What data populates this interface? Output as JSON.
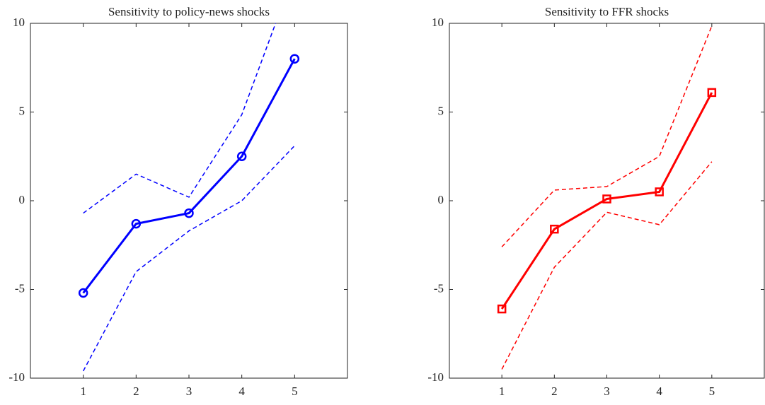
{
  "chart_data": [
    {
      "type": "line",
      "title": "Sensitivity to policy-news shocks",
      "x": [
        1,
        2,
        3,
        4,
        5
      ],
      "xlim": [
        0,
        6
      ],
      "xticks": [
        1,
        2,
        3,
        4,
        5
      ],
      "ylim": [
        -10,
        10
      ],
      "yticks": [
        -10,
        -5,
        0,
        5,
        10
      ],
      "series": [
        {
          "color": "#0000ff",
          "marker": "circle",
          "dash": false,
          "values": [
            -5.2,
            -1.3,
            -0.7,
            2.5,
            8.0
          ]
        },
        {
          "color": "#0000ff",
          "dash": true,
          "values": [
            -0.7,
            1.5,
            0.2,
            4.85,
            12.9
          ]
        },
        {
          "color": "#0000ff",
          "dash": true,
          "values": [
            -9.6,
            -4.0,
            -1.7,
            0.0,
            3.1
          ]
        }
      ]
    },
    {
      "type": "line",
      "title": "Sensitivity to FFR shocks",
      "x": [
        1,
        2,
        3,
        4,
        5
      ],
      "xlim": [
        0,
        6
      ],
      "xticks": [
        1,
        2,
        3,
        4,
        5
      ],
      "ylim": [
        -10,
        10
      ],
      "yticks": [
        -10,
        -5,
        0,
        5,
        10
      ],
      "series": [
        {
          "color": "#ff0000",
          "marker": "square",
          "dash": false,
          "values": [
            -6.1,
            -1.6,
            0.1,
            0.5,
            6.1
          ]
        },
        {
          "color": "#ff0000",
          "dash": true,
          "values": [
            -2.6,
            0.6,
            0.8,
            2.5,
            9.85
          ]
        },
        {
          "color": "#ff0000",
          "dash": true,
          "values": [
            -9.5,
            -3.75,
            -0.65,
            -1.35,
            2.2
          ]
        }
      ]
    }
  ]
}
